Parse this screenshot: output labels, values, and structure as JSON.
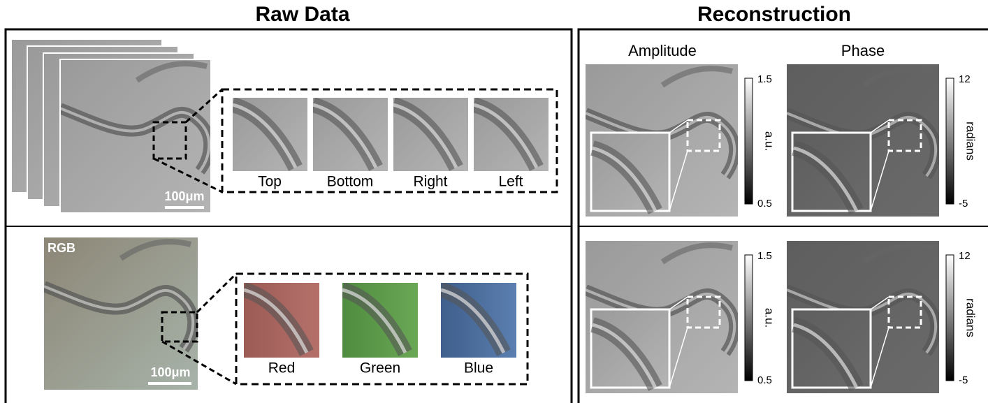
{
  "raw_data": {
    "title": "Raw Data",
    "top_panel": {
      "scale_bar": "100μm",
      "views": [
        "Top",
        "Bottom",
        "Right",
        "Left"
      ]
    },
    "bottom_panel": {
      "label": "RGB",
      "scale_bar": "100μm",
      "channels": [
        "Red",
        "Green",
        "Blue"
      ]
    }
  },
  "reconstruction": {
    "title": "Reconstruction",
    "columns": [
      "Amplitude",
      "Phase"
    ],
    "rows": [
      {
        "amplitude_bar": {
          "max": "1.5",
          "min": "0.5",
          "unit": "a.u."
        },
        "phase_bar": {
          "max": "12",
          "min": "-5",
          "unit": "radians"
        }
      },
      {
        "amplitude_bar": {
          "max": "1.5",
          "min": "0.5",
          "unit": "a.u."
        },
        "phase_bar": {
          "max": "12",
          "min": "-5",
          "unit": "radians"
        }
      }
    ]
  }
}
